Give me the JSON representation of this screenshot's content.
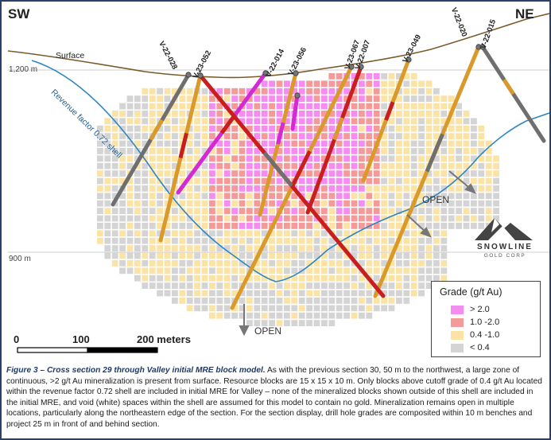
{
  "section": {
    "sw_label": "SW",
    "ne_label": "NE",
    "surface_label": "Surface",
    "shell_label": "Revenue factor 0.72 shell",
    "elev_top": "1,200 m",
    "elev_bottom": "900 m",
    "open_labels": [
      "OPEN",
      "OPEN"
    ]
  },
  "scale_bar": {
    "labels": [
      "0",
      "100",
      "200 meters"
    ]
  },
  "drill_holes": [
    "V-22-028",
    "V-23-052",
    "V-22-014",
    "V-23-056",
    "V-23-067",
    "V-22-007",
    "V-23-049",
    "V-22-020",
    "V-22-015"
  ],
  "logo": {
    "name": "SNOWLINE",
    "sub": "GOLD CORP"
  },
  "legend": {
    "title": "Grade (g/t Au)",
    "items": [
      {
        "label": "> 2.0",
        "color": "#f58cf0"
      },
      {
        "label": "1.0 -2.0",
        "color": "#f49a98"
      },
      {
        "label": "0.4 -1.0",
        "color": "#fbe3a6"
      },
      {
        "label": "< 0.4",
        "color": "#d4d4d4"
      }
    ]
  },
  "caption": {
    "fig_label": "Figure 3 – Cross section 29 through Valley initial MRE block model.",
    "body": " As with the previous section 30, 50 m to the northwest, a large zone of continuous, >2 g/t Au mineralization is present from surface. Resource blocks are 15 x 15 x 10 m. Only blocks above cutoff grade of 0.4 g/t Au located within the revenue factor 0.72 shell are included in initial MRE for Valley – none of the mineralized blocks shown outside of this shell are included in the initial MRE, and void (white) spaces within the shell are assumed for this model to contain no gold. Mineralization remains open in multiple locations, particularly along the northeastern edge of the section. For the section display, drill hole grades are composited within 10 m benches and project 25 m in front of and behind section."
  },
  "colors": {
    "frame": "#2b3f6b",
    "surface_line": "#7a5a2a",
    "shell_line": "#2e86c1",
    "hole_gray": "#6f6f6f",
    "hole_orange": "#d99a2b",
    "hole_red": "#c81e1e",
    "hole_magenta": "#d42ad4"
  }
}
